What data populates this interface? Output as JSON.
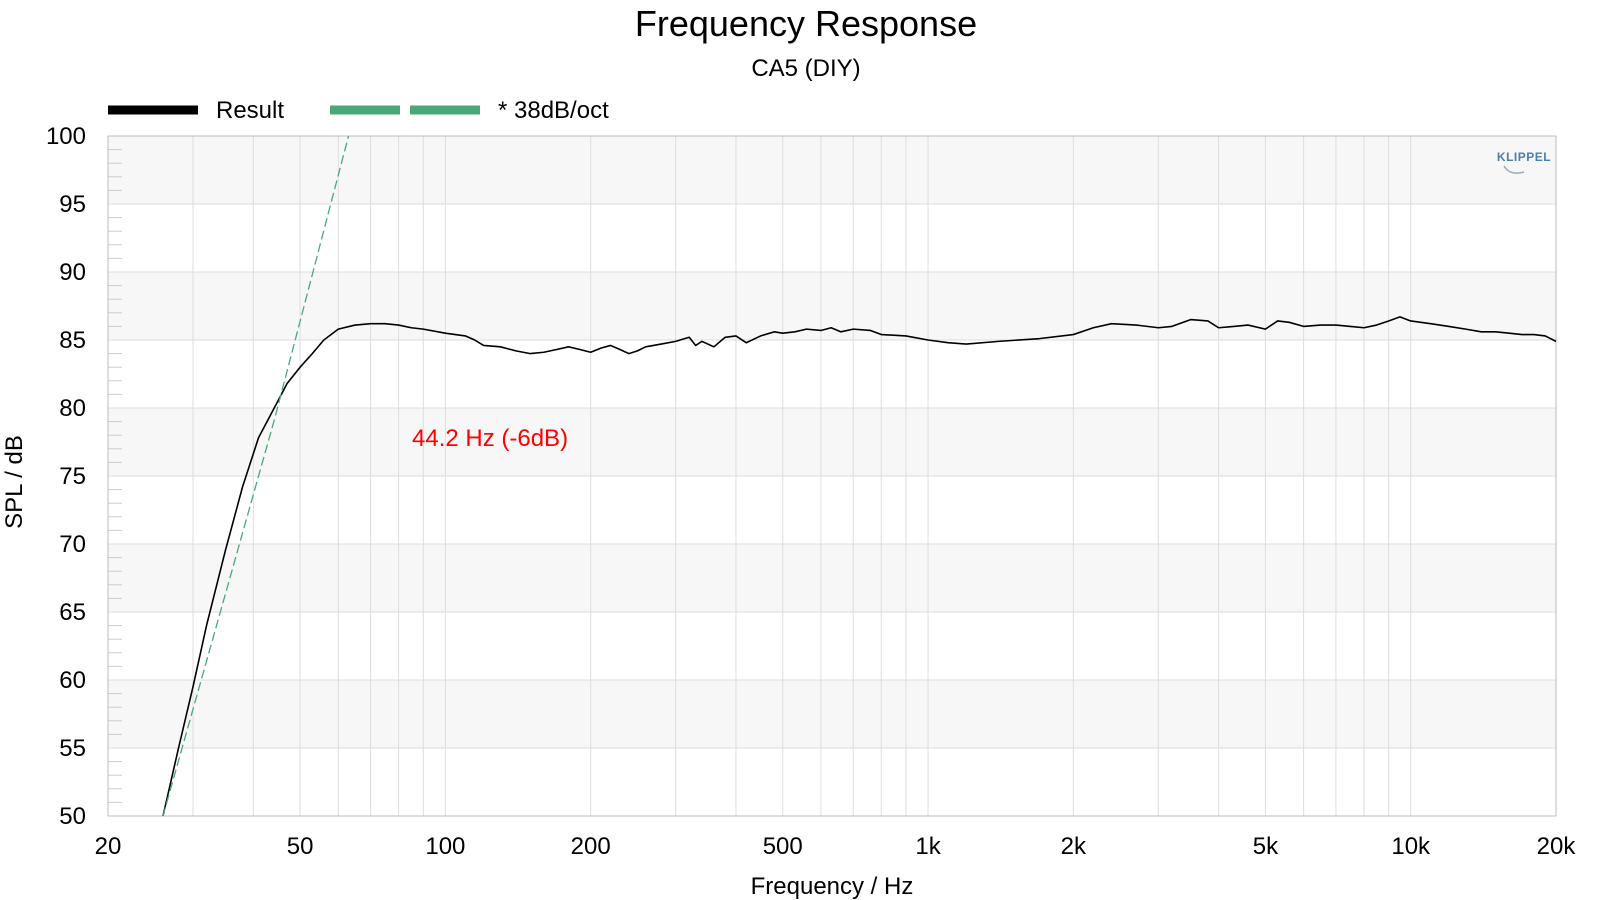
{
  "chart_data": {
    "type": "line",
    "title": "Frequency Response",
    "subtitle": "CA5 (DIY)",
    "xlabel": "Frequency / Hz",
    "ylabel": "SPL / dB",
    "xscale": "log",
    "xlim": [
      20,
      20000
    ],
    "ylim": [
      50,
      100
    ],
    "grid": true,
    "legend_position": "top-left",
    "x_ticks": [
      20,
      50,
      100,
      200,
      500,
      1000,
      2000,
      5000,
      10000,
      20000
    ],
    "x_tick_labels": [
      "20",
      "50",
      "100",
      "200",
      "500",
      "1k",
      "2k",
      "5k",
      "10k",
      "20k"
    ],
    "y_ticks": [
      50,
      55,
      60,
      65,
      70,
      75,
      80,
      85,
      90,
      95,
      100
    ],
    "y_tick_labels": [
      "50",
      "55",
      "60",
      "65",
      "70",
      "75",
      "80",
      "85",
      "90",
      "95",
      "100"
    ],
    "annotation": {
      "text": "44.2 Hz (-6dB)",
      "color": "#ff0000"
    },
    "logo_text": "KLIPPEL",
    "series": [
      {
        "name": "Result",
        "color": "#000000",
        "style": "solid",
        "points": [
          [
            26,
            50.0
          ],
          [
            28,
            55.0
          ],
          [
            30,
            59.5
          ],
          [
            32,
            64.0
          ],
          [
            35,
            69.5
          ],
          [
            38,
            74.2
          ],
          [
            41,
            77.8
          ],
          [
            44.2,
            80.0
          ],
          [
            47,
            81.8
          ],
          [
            50,
            83.0
          ],
          [
            53,
            84.0
          ],
          [
            56,
            85.0
          ],
          [
            60,
            85.8
          ],
          [
            65,
            86.1
          ],
          [
            70,
            86.2
          ],
          [
            75,
            86.2
          ],
          [
            80,
            86.1
          ],
          [
            85,
            85.9
          ],
          [
            90,
            85.8
          ],
          [
            100,
            85.5
          ],
          [
            110,
            85.3
          ],
          [
            115,
            85.0
          ],
          [
            120,
            84.6
          ],
          [
            130,
            84.5
          ],
          [
            140,
            84.2
          ],
          [
            150,
            84.0
          ],
          [
            160,
            84.1
          ],
          [
            170,
            84.3
          ],
          [
            180,
            84.5
          ],
          [
            190,
            84.3
          ],
          [
            200,
            84.1
          ],
          [
            210,
            84.4
          ],
          [
            220,
            84.6
          ],
          [
            230,
            84.3
          ],
          [
            240,
            84.0
          ],
          [
            250,
            84.2
          ],
          [
            260,
            84.5
          ],
          [
            280,
            84.7
          ],
          [
            300,
            84.9
          ],
          [
            320,
            85.2
          ],
          [
            330,
            84.6
          ],
          [
            340,
            84.9
          ],
          [
            360,
            84.5
          ],
          [
            380,
            85.2
          ],
          [
            400,
            85.3
          ],
          [
            420,
            84.8
          ],
          [
            450,
            85.3
          ],
          [
            480,
            85.6
          ],
          [
            500,
            85.5
          ],
          [
            530,
            85.6
          ],
          [
            560,
            85.8
          ],
          [
            600,
            85.7
          ],
          [
            630,
            85.9
          ],
          [
            660,
            85.6
          ],
          [
            700,
            85.8
          ],
          [
            760,
            85.7
          ],
          [
            800,
            85.4
          ],
          [
            900,
            85.3
          ],
          [
            1000,
            85.0
          ],
          [
            1100,
            84.8
          ],
          [
            1200,
            84.7
          ],
          [
            1400,
            84.9
          ],
          [
            1700,
            85.1
          ],
          [
            2000,
            85.4
          ],
          [
            2200,
            85.9
          ],
          [
            2400,
            86.2
          ],
          [
            2700,
            86.1
          ],
          [
            3000,
            85.9
          ],
          [
            3200,
            86.0
          ],
          [
            3500,
            86.5
          ],
          [
            3800,
            86.4
          ],
          [
            4000,
            85.9
          ],
          [
            4300,
            86.0
          ],
          [
            4600,
            86.1
          ],
          [
            5000,
            85.8
          ],
          [
            5300,
            86.4
          ],
          [
            5600,
            86.3
          ],
          [
            6000,
            86.0
          ],
          [
            6500,
            86.1
          ],
          [
            7000,
            86.1
          ],
          [
            7500,
            86.0
          ],
          [
            8000,
            85.9
          ],
          [
            8500,
            86.1
          ],
          [
            9000,
            86.4
          ],
          [
            9500,
            86.7
          ],
          [
            10000,
            86.4
          ],
          [
            11000,
            86.2
          ],
          [
            12000,
            86.0
          ],
          [
            13000,
            85.8
          ],
          [
            14000,
            85.6
          ],
          [
            15000,
            85.6
          ],
          [
            16000,
            85.5
          ],
          [
            17000,
            85.4
          ],
          [
            18000,
            85.4
          ],
          [
            19000,
            85.3
          ],
          [
            20000,
            84.9
          ]
        ]
      },
      {
        "name": "* 38dB/oct",
        "color": "#4aa878",
        "style": "dashed",
        "points": [
          [
            26,
            50.0
          ],
          [
            44.2,
            79.1
          ],
          [
            63,
            100.0
          ]
        ]
      }
    ]
  }
}
